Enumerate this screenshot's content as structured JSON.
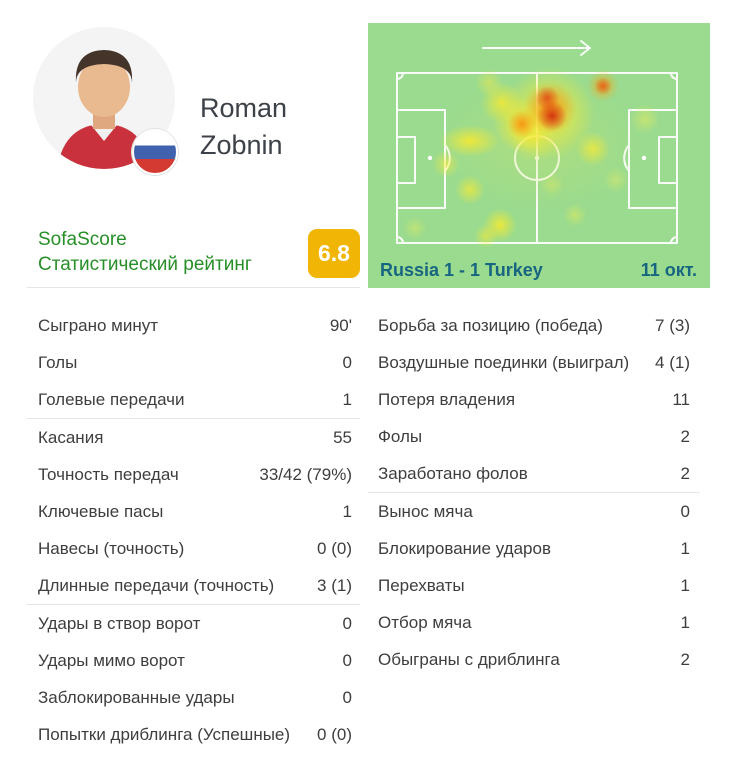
{
  "player": {
    "first_name": "Roman",
    "last_name": "Zobnin",
    "nationality_flag": "russia"
  },
  "header": {
    "brand": "SofaScore",
    "subtitle": "Статистический рейтинг",
    "rating": "6.8"
  },
  "heatmap": {
    "match": "Russia 1 - 1 Turkey",
    "date": "11 окт.",
    "direction_icon": "arrow-right"
  },
  "colors": {
    "brand_green": "#278f27",
    "rating_yellow": "#f0b505",
    "pitch_green": "#9adb8f",
    "match_text_teal": "#176580",
    "heat_red": "#d32f11",
    "heat_orange": "#f87c08",
    "heat_yellow": "#faea2d"
  },
  "stats": {
    "left": [
      {
        "rows": [
          [
            "Сыграно минут",
            "90'"
          ],
          [
            "Голы",
            "0"
          ],
          [
            "Голевые передачи",
            "1"
          ]
        ]
      },
      {
        "rows": [
          [
            "Касания",
            "55"
          ],
          [
            "Точность передач",
            "33/42 (79%)"
          ],
          [
            "Ключевые пасы",
            "1"
          ],
          [
            "Навесы (точность)",
            "0 (0)"
          ],
          [
            "Длинные передачи (точность)",
            "3 (1)"
          ]
        ]
      },
      {
        "rows": [
          [
            "Удары в створ ворот",
            "0"
          ],
          [
            "Удары мимо ворот",
            "0"
          ],
          [
            "Заблокированные удары",
            "0"
          ],
          [
            "Попытки дриблинга (Успешные)",
            "0 (0)"
          ]
        ]
      }
    ],
    "right": [
      {
        "rows": [
          [
            "Борьба за позицию (победа)",
            "7 (3)"
          ],
          [
            "Воздушные поединки (выиграл)",
            "4 (1)"
          ],
          [
            "Потеря владения",
            "11"
          ],
          [
            "Фолы",
            "2"
          ],
          [
            "Заработано фолов",
            "2"
          ]
        ]
      },
      {
        "rows": [
          [
            "Вынос мяча",
            "0"
          ],
          [
            "Блокирование ударов",
            "1"
          ],
          [
            "Перехваты",
            "1"
          ],
          [
            "Отбор мяча",
            "1"
          ],
          [
            "Обыграны с дриблинга",
            "2"
          ]
        ]
      }
    ]
  }
}
